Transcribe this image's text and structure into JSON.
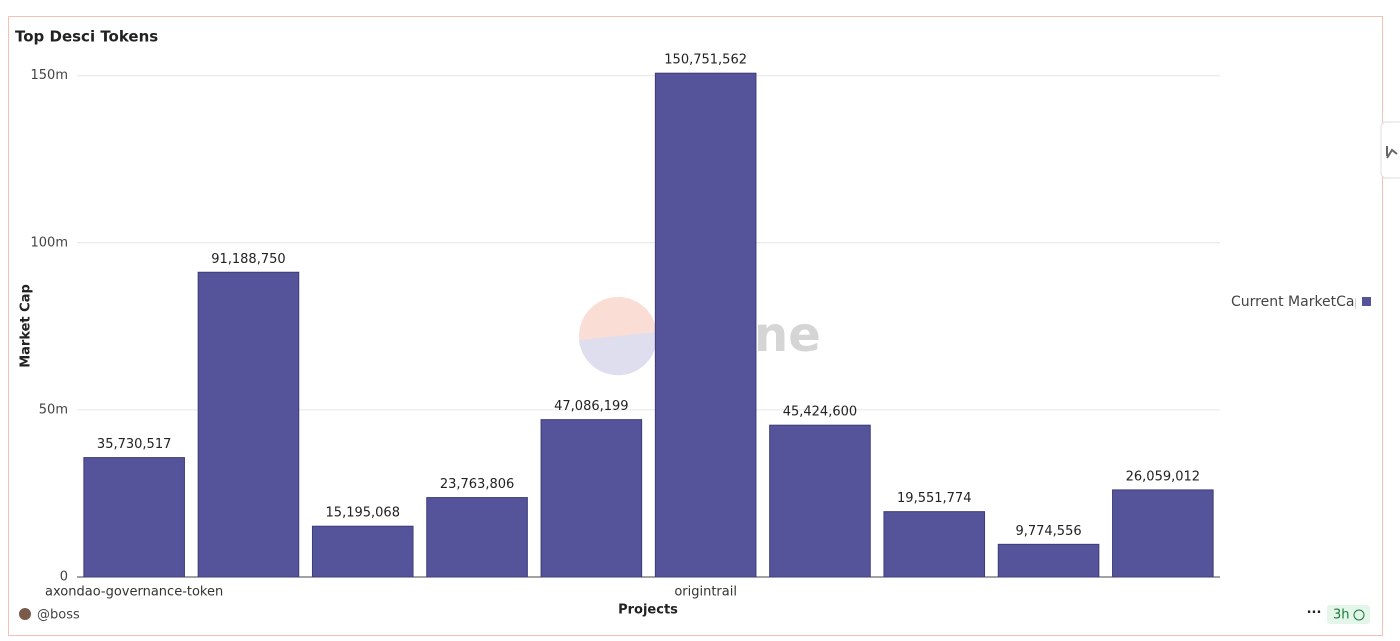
{
  "chart_data": {
    "type": "bar",
    "title": "Top Desci Tokens",
    "x_label": "Projects",
    "y_label": "Market Cap",
    "categories": [
      "axondao-governance-token",
      null,
      null,
      null,
      null,
      "origintrail",
      null,
      null,
      null,
      null
    ],
    "series": [
      {
        "name": "Current MarketCap",
        "color": "#55549a",
        "values": [
          35730517,
          91188750,
          15195068,
          23763806,
          47086199,
          150751562,
          45424600,
          19551774,
          9774556,
          26059012
        ],
        "value_labels": [
          "35,730,517",
          "91,188,750",
          "15,195,068",
          "23,763,806",
          "47,086,199",
          "150,751,562",
          "45,424,600",
          "19,551,774",
          "9,774,556",
          "26,059,012"
        ]
      }
    ],
    "ylim": [
      0,
      155000000
    ],
    "yticks": [
      0,
      {
        "value": 50000000,
        "label": "50m"
      },
      {
        "value": 100000000,
        "label": "100m"
      },
      {
        "value": 150000000,
        "label": "150m"
      }
    ],
    "grid": true,
    "legend": "right",
    "watermark": "Dune"
  },
  "footer": {
    "author": "@boss",
    "age": "3h"
  }
}
